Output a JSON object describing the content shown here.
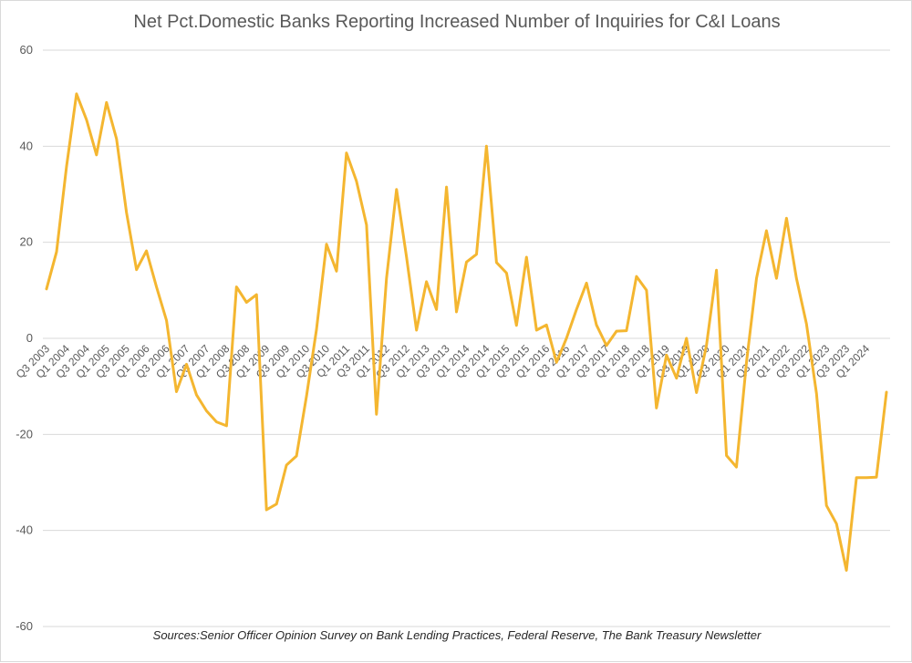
{
  "chart_data": {
    "type": "line",
    "title": "Net Pct.Domestic Banks Reporting Increased Number of Inquiries for C&I Loans",
    "source": "Sources:Senior Officer Opinion Survey on Bank Lending Practices, Federal Reserve, The Bank Treasury Newsletter",
    "ylim": [
      -60,
      60
    ],
    "yticks": [
      60,
      40,
      20,
      0,
      -20,
      -40,
      -60
    ],
    "grid": true,
    "line_color": "#F4B630",
    "x": [
      "Q3 2003",
      "Q4 2003",
      "Q1 2004",
      "Q2 2004",
      "Q3 2004",
      "Q4 2004",
      "Q1 2005",
      "Q2 2005",
      "Q3 2005",
      "Q4 2005",
      "Q1 2006",
      "Q2 2006",
      "Q3 2006",
      "Q4 2006",
      "Q1 2007",
      "Q2 2007",
      "Q3 2007",
      "Q4 2007",
      "Q1 2008",
      "Q2 2008",
      "Q3 2008",
      "Q4 2008",
      "Q1 2009",
      "Q2 2009",
      "Q3 2009",
      "Q4 2009",
      "Q1 2010",
      "Q2 2010",
      "Q3 2010",
      "Q4 2010",
      "Q1 2011",
      "Q2 2011",
      "Q3 2011",
      "Q4 2011",
      "Q1 2012",
      "Q2 2012",
      "Q3 2012",
      "Q4 2012",
      "Q1 2013",
      "Q2 2013",
      "Q3 2013",
      "Q4 2013",
      "Q1 2014",
      "Q2 2014",
      "Q3 2014",
      "Q4 2014",
      "Q1 2015",
      "Q2 2015",
      "Q3 2015",
      "Q4 2015",
      "Q1 2016",
      "Q2 2016",
      "Q3 2016",
      "Q4 2016",
      "Q1 2017",
      "Q2 2017",
      "Q3 2017",
      "Q4 2017",
      "Q1 2018",
      "Q2 2018",
      "Q3 2018",
      "Q4 2018",
      "Q1 2019",
      "Q2 2019",
      "Q3 2019",
      "Q4 2019",
      "Q1 2020",
      "Q2 2020",
      "Q3 2020",
      "Q4 2020",
      "Q1 2021",
      "Q2 2021",
      "Q3 2021",
      "Q4 2021",
      "Q1 2022",
      "Q2 2022",
      "Q3 2022",
      "Q4 2022",
      "Q1 2023",
      "Q2 2023",
      "Q3 2023",
      "Q4 2023",
      "Q1 2024",
      "Q2 2024",
      "Q3 2024"
    ],
    "tick_labels": [
      "Q3 2003",
      "Q1 2004",
      "Q3 2004",
      "Q1 2005",
      "Q3 2005",
      "Q1 2006",
      "Q3 2006",
      "Q1 2007",
      "Q3 2007",
      "Q1 2008",
      "Q3 2008",
      "Q1 2009",
      "Q3 2009",
      "Q1 2010",
      "Q3 2010",
      "Q1 2011",
      "Q3 2011",
      "Q1 2012",
      "Q3 2012",
      "Q1 2013",
      "Q3 2013",
      "Q1 2014",
      "Q3 2014",
      "Q1 2015",
      "Q3 2015",
      "Q1 2016",
      "Q3 2016",
      "Q1 2017",
      "Q3 2017",
      "Q1 2018",
      "Q3 2018",
      "Q1 2019",
      "Q3 2019",
      "Q1 2020",
      "Q3 2020",
      "Q1 2021",
      "Q3 2021",
      "Q1 2022",
      "Q3 2022",
      "Q1 2023",
      "Q3 2023",
      "Q1 2024"
    ],
    "values": [
      10.3,
      18,
      35.7,
      50.9,
      45.5,
      38.2,
      49.1,
      41.5,
      26.2,
      14.3,
      18.2,
      10.7,
      3.7,
      -11.1,
      -5.4,
      -11.8,
      -15.1,
      -17.4,
      -18.2,
      10.7,
      7.5,
      9.1,
      -35.7,
      -34.5,
      -26.4,
      -24.5,
      -12,
      1.8,
      19.6,
      14,
      38.6,
      32.7,
      23.6,
      -15.8,
      12.5,
      31,
      17,
      1.7,
      11.8,
      6,
      31.5,
      5.5,
      15.9,
      17.5,
      40,
      15.8,
      13.6,
      2.7,
      16.9,
      1.7,
      2.8,
      -5,
      0,
      6,
      11.5,
      2.8,
      -1.5,
      1.5,
      1.6,
      12.9,
      10,
      -14.5,
      -3.5,
      -8.3,
      0,
      -11.3,
      -1.5,
      14.2,
      -24.4,
      -26.8,
      -5,
      12.5,
      22.4,
      12.5,
      25,
      12.5,
      3,
      -11.5,
      -34.8,
      -38.6,
      -48.3,
      -29,
      -29,
      -28.9,
      -11.2
    ]
  }
}
